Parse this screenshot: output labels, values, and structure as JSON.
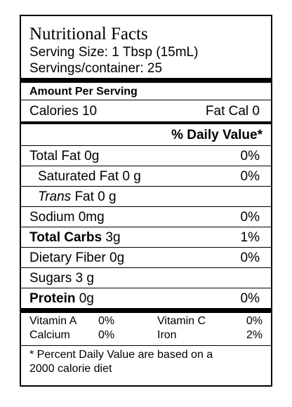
{
  "label": {
    "title": "Nutritional Facts",
    "serving_size": "Serving Size: 1 Tbsp (15mL)",
    "servings_per_container": "Servings/container:  25",
    "amount_per_serving": "Amount Per Serving",
    "calories": "Calories 10",
    "fat_cal": "Fat Cal 0",
    "daily_value_header": "% Daily Value*",
    "nutrients": [
      {
        "name": "Total Fat 0g",
        "value": "0%"
      },
      {
        "name": "Saturated Fat 0 g",
        "value": "0%"
      },
      {
        "name_italic": "Trans",
        "name_rest": " Fat 0 g",
        "value": ""
      },
      {
        "name": "Sodium 0mg",
        "value": "0%"
      },
      {
        "name_bold": "Total Carbs",
        "name_rest": " 3g",
        "value": "1%"
      },
      {
        "name": "Dietary Fiber 0g",
        "value": "0%"
      },
      {
        "name": "Sugars 3 g",
        "value": ""
      },
      {
        "name_bold": "Protein",
        "name_rest": " 0g",
        "value": "0%"
      }
    ],
    "vitamins": [
      {
        "name1": "Vitamin A",
        "val1": "0%",
        "name2": "Vitamin C",
        "val2": "0%"
      },
      {
        "name1": "Calcium",
        "val1": "0%",
        "name2": "Iron",
        "val2": "2%"
      }
    ],
    "footnote_line1": "* Percent Daily Value are based on a",
    "footnote_line2": "2000 calorie diet"
  }
}
